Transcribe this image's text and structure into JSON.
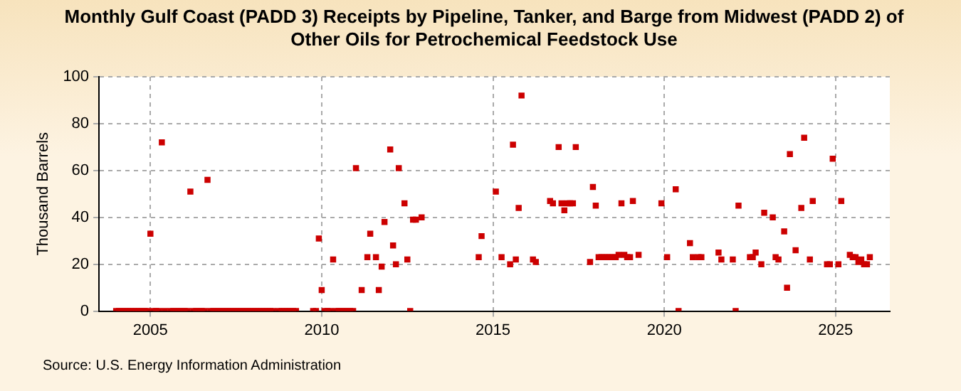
{
  "chart_data": {
    "type": "scatter",
    "title": "Monthly Gulf Coast (PADD 3) Receipts by Pipeline, Tanker, and Barge from Midwest (PADD 2) of Other Oils for Petrochemical Feedstock Use",
    "ylabel": "Thousand Barrels",
    "annotations": [
      "Source: U.S. Energy Information Administration"
    ],
    "xlim": [
      "2003-07",
      "2026-08"
    ],
    "xticks": [
      "2005",
      "2010",
      "2015",
      "2020",
      "2025"
    ],
    "ylim": [
      0,
      100
    ],
    "yticks": [
      0,
      20,
      40,
      60,
      80,
      100
    ],
    "grid": true,
    "legend": false,
    "marker": "square",
    "series": [
      {
        "color": "#cc0000",
        "x": [
          "2004-01",
          "2004-02",
          "2004-03",
          "2004-04",
          "2004-05",
          "2004-06",
          "2004-07",
          "2004-08",
          "2004-09",
          "2004-10",
          "2004-11",
          "2004-12",
          "2005-01",
          "2005-02",
          "2005-03",
          "2005-04",
          "2005-05",
          "2005-06",
          "2005-08",
          "2005-09",
          "2005-10",
          "2005-11",
          "2005-12",
          "2006-01",
          "2006-02",
          "2006-03",
          "2006-04",
          "2006-05",
          "2006-06",
          "2006-07",
          "2006-08",
          "2006-09",
          "2006-10",
          "2006-11",
          "2006-12",
          "2007-01",
          "2007-02",
          "2007-03",
          "2007-04",
          "2007-05",
          "2007-06",
          "2007-07",
          "2007-08",
          "2007-09",
          "2007-10",
          "2007-11",
          "2007-12",
          "2008-01",
          "2008-02",
          "2008-03",
          "2008-04",
          "2008-05",
          "2008-06",
          "2008-07",
          "2008-08",
          "2008-10",
          "2008-11",
          "2008-12",
          "2009-01",
          "2009-02",
          "2009-03",
          "2009-04",
          "2009-10",
          "2009-11",
          "2009-12",
          "2010-01",
          "2010-02",
          "2010-03",
          "2010-04",
          "2010-05",
          "2010-06",
          "2010-07",
          "2010-08",
          "2010-09",
          "2010-10",
          "2010-11",
          "2010-12",
          "2011-01",
          "2011-03",
          "2011-05",
          "2011-06",
          "2011-08",
          "2011-09",
          "2011-10",
          "2011-11",
          "2012-01",
          "2012-02",
          "2012-03",
          "2012-04",
          "2012-06",
          "2012-07",
          "2012-08",
          "2012-09",
          "2012-10",
          "2012-12",
          "2014-08",
          "2014-09",
          "2015-02",
          "2015-04",
          "2015-07",
          "2015-08",
          "2015-09",
          "2015-10",
          "2015-11",
          "2016-03",
          "2016-04",
          "2016-09",
          "2016-10",
          "2016-12",
          "2017-01",
          "2017-02",
          "2017-03",
          "2017-04",
          "2017-05",
          "2017-06",
          "2017-11",
          "2017-12",
          "2018-01",
          "2018-02",
          "2018-03",
          "2018-04",
          "2018-05",
          "2018-06",
          "2018-07",
          "2018-08",
          "2018-09",
          "2018-10",
          "2018-11",
          "2018-12",
          "2019-01",
          "2019-02",
          "2019-04",
          "2019-12",
          "2020-02",
          "2020-05",
          "2020-06",
          "2020-10",
          "2020-11",
          "2021-01",
          "2021-02",
          "2021-08",
          "2021-09",
          "2022-01",
          "2022-02",
          "2022-03",
          "2022-07",
          "2022-08",
          "2022-09",
          "2022-11",
          "2022-12",
          "2023-03",
          "2023-04",
          "2023-05",
          "2023-07",
          "2023-08",
          "2023-09",
          "2023-11",
          "2024-01",
          "2024-02",
          "2024-04",
          "2024-05",
          "2024-10",
          "2024-11",
          "2024-12",
          "2025-02",
          "2025-03",
          "2025-06",
          "2025-07",
          "2025-08",
          "2025-09",
          "2025-10",
          "2025-11",
          "2025-12",
          "2026-01"
        ],
        "values": [
          0,
          0,
          0,
          0,
          0,
          0,
          0,
          0,
          0,
          0,
          0,
          0,
          33,
          0,
          0,
          0,
          72,
          0,
          0,
          0,
          0,
          0,
          0,
          0,
          0,
          51,
          0,
          0,
          0,
          0,
          0,
          56,
          0,
          0,
          0,
          0,
          0,
          0,
          0,
          0,
          0,
          0,
          0,
          0,
          0,
          0,
          0,
          0,
          0,
          0,
          0,
          0,
          0,
          0,
          0,
          0,
          0,
          0,
          0,
          0,
          0,
          0,
          0,
          0,
          31,
          9,
          0,
          0,
          0,
          22,
          0,
          0,
          0,
          0,
          0,
          0,
          0,
          61,
          9,
          23,
          33,
          23,
          9,
          19,
          38,
          69,
          28,
          20,
          61,
          46,
          22,
          0,
          39,
          39,
          40,
          23,
          32,
          51,
          23,
          20,
          71,
          22,
          44,
          92,
          22,
          21,
          47,
          46,
          70,
          46,
          43,
          46,
          46,
          46,
          70,
          21,
          53,
          45,
          23,
          23,
          23,
          23,
          23,
          23,
          23,
          24,
          46,
          24,
          23,
          23,
          47,
          24,
          46,
          23,
          52,
          0,
          29,
          23,
          23,
          23,
          25,
          22,
          22,
          0,
          45,
          23,
          23,
          25,
          20,
          42,
          40,
          23,
          22,
          34,
          10,
          67,
          26,
          44,
          74,
          22,
          47,
          20,
          20,
          65,
          20,
          47,
          24,
          23,
          23,
          21,
          22,
          20,
          20,
          23
        ]
      }
    ]
  }
}
